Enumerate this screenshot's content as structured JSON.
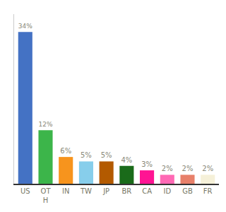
{
  "chart_data": {
    "type": "bar",
    "categories": [
      "US",
      "OT\nH",
      "IN",
      "TW",
      "JP",
      "BR",
      "CA",
      "ID",
      "GB",
      "FR"
    ],
    "values": [
      34,
      12,
      6,
      5,
      5,
      4,
      3,
      2,
      2,
      2
    ],
    "value_labels": [
      "34%",
      "12%",
      "6%",
      "5%",
      "5%",
      "4%",
      "3%",
      "2%",
      "2%",
      "2%"
    ],
    "colors": [
      "#4472c4",
      "#3cb54a",
      "#f7941d",
      "#87ceeb",
      "#b35a00",
      "#1a6b1a",
      "#ff1493",
      "#ff69b4",
      "#e8806a",
      "#f5f0d8"
    ],
    "ylim": [
      0,
      38
    ],
    "grid": false,
    "data_labels": true,
    "tick_labels": "x"
  }
}
